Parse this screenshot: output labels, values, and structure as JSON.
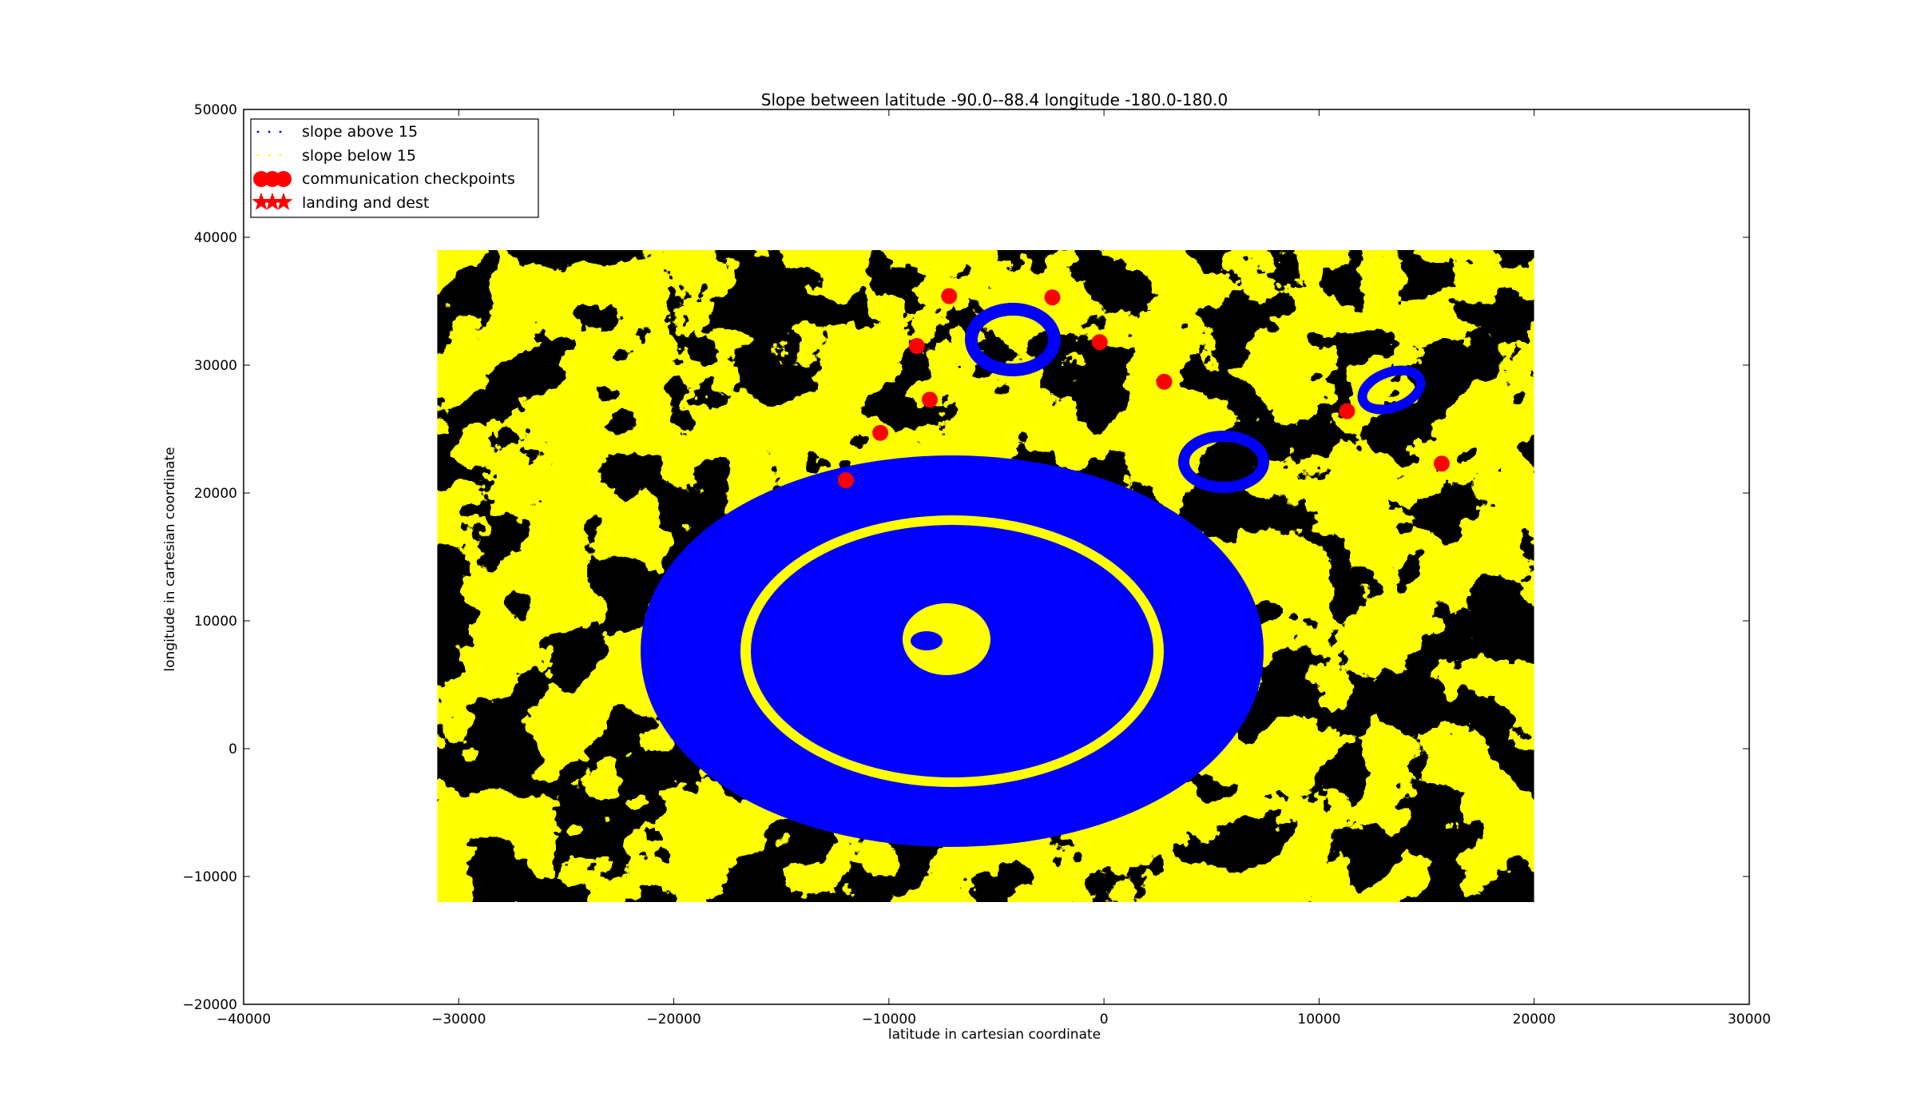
{
  "chart_data": {
    "type": "scatter",
    "title": "Slope between latitude -90.0--88.4 longitude -180.0-180.0",
    "xlabel": "latitude in cartesian coordinate",
    "ylabel": "longitude in cartesian coordinate",
    "xlim": [
      -40000,
      30000
    ],
    "ylim": [
      -20000,
      50000
    ],
    "xticks": [
      -40000,
      -30000,
      -20000,
      -10000,
      0,
      10000,
      20000,
      30000
    ],
    "yticks": [
      -20000,
      -10000,
      0,
      10000,
      20000,
      30000,
      40000,
      50000
    ],
    "xtick_labels": [
      "−40000",
      "−30000",
      "−20000",
      "−10000",
      "0",
      "10000",
      "20000",
      "30000"
    ],
    "ytick_labels": [
      "−20000",
      "−10000",
      "0",
      "10000",
      "20000",
      "30000",
      "40000",
      "50000"
    ],
    "grid": false,
    "legend_position": "upper-left",
    "data_extent": {
      "x": [
        -31000,
        20000
      ],
      "y": [
        -12000,
        39000
      ]
    },
    "colors": {
      "slope_above": "#0000ff",
      "slope_below": "#ffff00",
      "checkpoint": "#ff0000"
    },
    "series": [
      {
        "name": "slope above 15",
        "marker": "dot",
        "color": "#0000ff"
      },
      {
        "name": "slope below 15",
        "marker": "dot",
        "color": "#ffff00"
      },
      {
        "name": "communication checkpoints",
        "marker": "circle",
        "color": "#ff0000",
        "points": [
          {
            "x": -12000,
            "y": 21000
          },
          {
            "x": -10400,
            "y": 24700
          },
          {
            "x": -8100,
            "y": 27300
          },
          {
            "x": -8700,
            "y": 31500
          },
          {
            "x": -7200,
            "y": 35400
          },
          {
            "x": -2400,
            "y": 35300
          },
          {
            "x": -200,
            "y": 31800
          },
          {
            "x": 2800,
            "y": 28700
          },
          {
            "x": 11300,
            "y": 26400
          },
          {
            "x": 15700,
            "y": 22300
          }
        ]
      },
      {
        "name": "landing and dest",
        "marker": "star",
        "color": "#ff0000",
        "points": []
      }
    ]
  }
}
